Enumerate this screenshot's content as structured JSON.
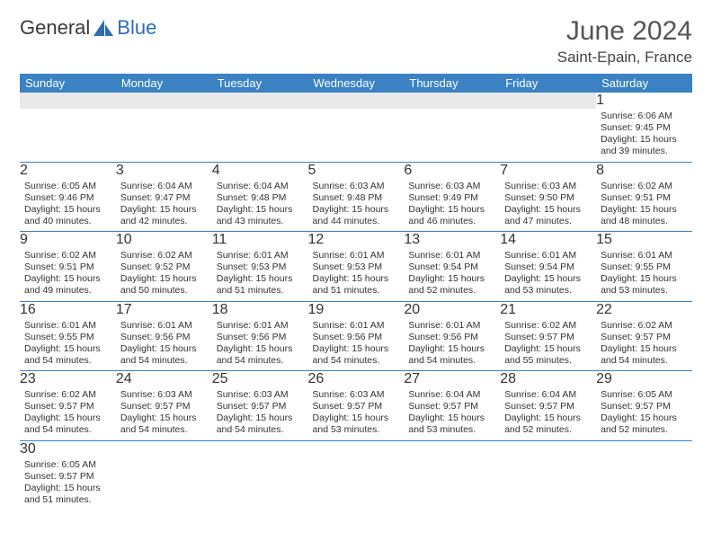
{
  "brand": {
    "part1": "General",
    "part2": "Blue"
  },
  "title": "June 2024",
  "location": "Saint-Epain, France",
  "colors": {
    "header_bg": "#3a82c4",
    "header_fg": "#ffffff",
    "stripe": "#e9e9e9",
    "rule": "#3a82c4",
    "text": "#333333"
  },
  "day_headers": [
    "Sunday",
    "Monday",
    "Tuesday",
    "Wednesday",
    "Thursday",
    "Friday",
    "Saturday"
  ],
  "weeks": [
    [
      null,
      null,
      null,
      null,
      null,
      null,
      {
        "n": "1",
        "sr": "Sunrise: 6:06 AM",
        "ss": "Sunset: 9:45 PM",
        "d1": "Daylight: 15 hours",
        "d2": "and 39 minutes."
      }
    ],
    [
      {
        "n": "2",
        "sr": "Sunrise: 6:05 AM",
        "ss": "Sunset: 9:46 PM",
        "d1": "Daylight: 15 hours",
        "d2": "and 40 minutes."
      },
      {
        "n": "3",
        "sr": "Sunrise: 6:04 AM",
        "ss": "Sunset: 9:47 PM",
        "d1": "Daylight: 15 hours",
        "d2": "and 42 minutes."
      },
      {
        "n": "4",
        "sr": "Sunrise: 6:04 AM",
        "ss": "Sunset: 9:48 PM",
        "d1": "Daylight: 15 hours",
        "d2": "and 43 minutes."
      },
      {
        "n": "5",
        "sr": "Sunrise: 6:03 AM",
        "ss": "Sunset: 9:48 PM",
        "d1": "Daylight: 15 hours",
        "d2": "and 44 minutes."
      },
      {
        "n": "6",
        "sr": "Sunrise: 6:03 AM",
        "ss": "Sunset: 9:49 PM",
        "d1": "Daylight: 15 hours",
        "d2": "and 46 minutes."
      },
      {
        "n": "7",
        "sr": "Sunrise: 6:03 AM",
        "ss": "Sunset: 9:50 PM",
        "d1": "Daylight: 15 hours",
        "d2": "and 47 minutes."
      },
      {
        "n": "8",
        "sr": "Sunrise: 6:02 AM",
        "ss": "Sunset: 9:51 PM",
        "d1": "Daylight: 15 hours",
        "d2": "and 48 minutes."
      }
    ],
    [
      {
        "n": "9",
        "sr": "Sunrise: 6:02 AM",
        "ss": "Sunset: 9:51 PM",
        "d1": "Daylight: 15 hours",
        "d2": "and 49 minutes."
      },
      {
        "n": "10",
        "sr": "Sunrise: 6:02 AM",
        "ss": "Sunset: 9:52 PM",
        "d1": "Daylight: 15 hours",
        "d2": "and 50 minutes."
      },
      {
        "n": "11",
        "sr": "Sunrise: 6:01 AM",
        "ss": "Sunset: 9:53 PM",
        "d1": "Daylight: 15 hours",
        "d2": "and 51 minutes."
      },
      {
        "n": "12",
        "sr": "Sunrise: 6:01 AM",
        "ss": "Sunset: 9:53 PM",
        "d1": "Daylight: 15 hours",
        "d2": "and 51 minutes."
      },
      {
        "n": "13",
        "sr": "Sunrise: 6:01 AM",
        "ss": "Sunset: 9:54 PM",
        "d1": "Daylight: 15 hours",
        "d2": "and 52 minutes."
      },
      {
        "n": "14",
        "sr": "Sunrise: 6:01 AM",
        "ss": "Sunset: 9:54 PM",
        "d1": "Daylight: 15 hours",
        "d2": "and 53 minutes."
      },
      {
        "n": "15",
        "sr": "Sunrise: 6:01 AM",
        "ss": "Sunset: 9:55 PM",
        "d1": "Daylight: 15 hours",
        "d2": "and 53 minutes."
      }
    ],
    [
      {
        "n": "16",
        "sr": "Sunrise: 6:01 AM",
        "ss": "Sunset: 9:55 PM",
        "d1": "Daylight: 15 hours",
        "d2": "and 54 minutes."
      },
      {
        "n": "17",
        "sr": "Sunrise: 6:01 AM",
        "ss": "Sunset: 9:56 PM",
        "d1": "Daylight: 15 hours",
        "d2": "and 54 minutes."
      },
      {
        "n": "18",
        "sr": "Sunrise: 6:01 AM",
        "ss": "Sunset: 9:56 PM",
        "d1": "Daylight: 15 hours",
        "d2": "and 54 minutes."
      },
      {
        "n": "19",
        "sr": "Sunrise: 6:01 AM",
        "ss": "Sunset: 9:56 PM",
        "d1": "Daylight: 15 hours",
        "d2": "and 54 minutes."
      },
      {
        "n": "20",
        "sr": "Sunrise: 6:01 AM",
        "ss": "Sunset: 9:56 PM",
        "d1": "Daylight: 15 hours",
        "d2": "and 54 minutes."
      },
      {
        "n": "21",
        "sr": "Sunrise: 6:02 AM",
        "ss": "Sunset: 9:57 PM",
        "d1": "Daylight: 15 hours",
        "d2": "and 55 minutes."
      },
      {
        "n": "22",
        "sr": "Sunrise: 6:02 AM",
        "ss": "Sunset: 9:57 PM",
        "d1": "Daylight: 15 hours",
        "d2": "and 54 minutes."
      }
    ],
    [
      {
        "n": "23",
        "sr": "Sunrise: 6:02 AM",
        "ss": "Sunset: 9:57 PM",
        "d1": "Daylight: 15 hours",
        "d2": "and 54 minutes."
      },
      {
        "n": "24",
        "sr": "Sunrise: 6:03 AM",
        "ss": "Sunset: 9:57 PM",
        "d1": "Daylight: 15 hours",
        "d2": "and 54 minutes."
      },
      {
        "n": "25",
        "sr": "Sunrise: 6:03 AM",
        "ss": "Sunset: 9:57 PM",
        "d1": "Daylight: 15 hours",
        "d2": "and 54 minutes."
      },
      {
        "n": "26",
        "sr": "Sunrise: 6:03 AM",
        "ss": "Sunset: 9:57 PM",
        "d1": "Daylight: 15 hours",
        "d2": "and 53 minutes."
      },
      {
        "n": "27",
        "sr": "Sunrise: 6:04 AM",
        "ss": "Sunset: 9:57 PM",
        "d1": "Daylight: 15 hours",
        "d2": "and 53 minutes."
      },
      {
        "n": "28",
        "sr": "Sunrise: 6:04 AM",
        "ss": "Sunset: 9:57 PM",
        "d1": "Daylight: 15 hours",
        "d2": "and 52 minutes."
      },
      {
        "n": "29",
        "sr": "Sunrise: 6:05 AM",
        "ss": "Sunset: 9:57 PM",
        "d1": "Daylight: 15 hours",
        "d2": "and 52 minutes."
      }
    ],
    [
      {
        "n": "30",
        "sr": "Sunrise: 6:05 AM",
        "ss": "Sunset: 9:57 PM",
        "d1": "Daylight: 15 hours",
        "d2": "and 51 minutes."
      },
      null,
      null,
      null,
      null,
      null,
      null
    ]
  ]
}
